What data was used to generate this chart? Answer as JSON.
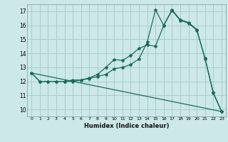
{
  "xlabel": "Humidex (Indice chaleur)",
  "bg_color": "#cce8e8",
  "grid_color": "#aacccc",
  "line_color": "#1a6b5a",
  "xlim": [
    -0.5,
    23.5
  ],
  "ylim": [
    9.5,
    17.5
  ],
  "xticks": [
    0,
    1,
    2,
    3,
    4,
    5,
    6,
    7,
    8,
    9,
    10,
    11,
    12,
    13,
    14,
    15,
    16,
    17,
    18,
    19,
    20,
    21,
    22,
    23
  ],
  "yticks": [
    10,
    11,
    12,
    13,
    14,
    15,
    16,
    17
  ],
  "line1_x": [
    0,
    1,
    2,
    3,
    4,
    5,
    6,
    7,
    8,
    9,
    10,
    11,
    12,
    13,
    14,
    15,
    16,
    17,
    18,
    19,
    20,
    21,
    22,
    23
  ],
  "line1_y": [
    12.6,
    12.0,
    12.0,
    12.0,
    12.0,
    12.1,
    12.1,
    12.25,
    12.5,
    13.0,
    13.55,
    13.5,
    13.85,
    14.35,
    14.6,
    14.5,
    16.0,
    17.05,
    16.35,
    16.15,
    15.65,
    13.65,
    11.15,
    9.85
  ],
  "line2_x": [
    0,
    1,
    2,
    3,
    4,
    5,
    6,
    7,
    8,
    9,
    10,
    11,
    12,
    13,
    14,
    15,
    16,
    17,
    18,
    19,
    20,
    21,
    22,
    23
  ],
  "line2_y": [
    12.6,
    12.0,
    12.0,
    12.0,
    12.0,
    12.0,
    12.1,
    12.2,
    12.35,
    12.5,
    12.9,
    13.0,
    13.2,
    13.6,
    14.8,
    17.1,
    16.0,
    17.1,
    16.4,
    16.2,
    15.7,
    13.6,
    11.2,
    9.85
  ],
  "line3_x": [
    0,
    23
  ],
  "line3_y": [
    12.6,
    9.85
  ],
  "markersize": 3,
  "linewidth": 0.9
}
